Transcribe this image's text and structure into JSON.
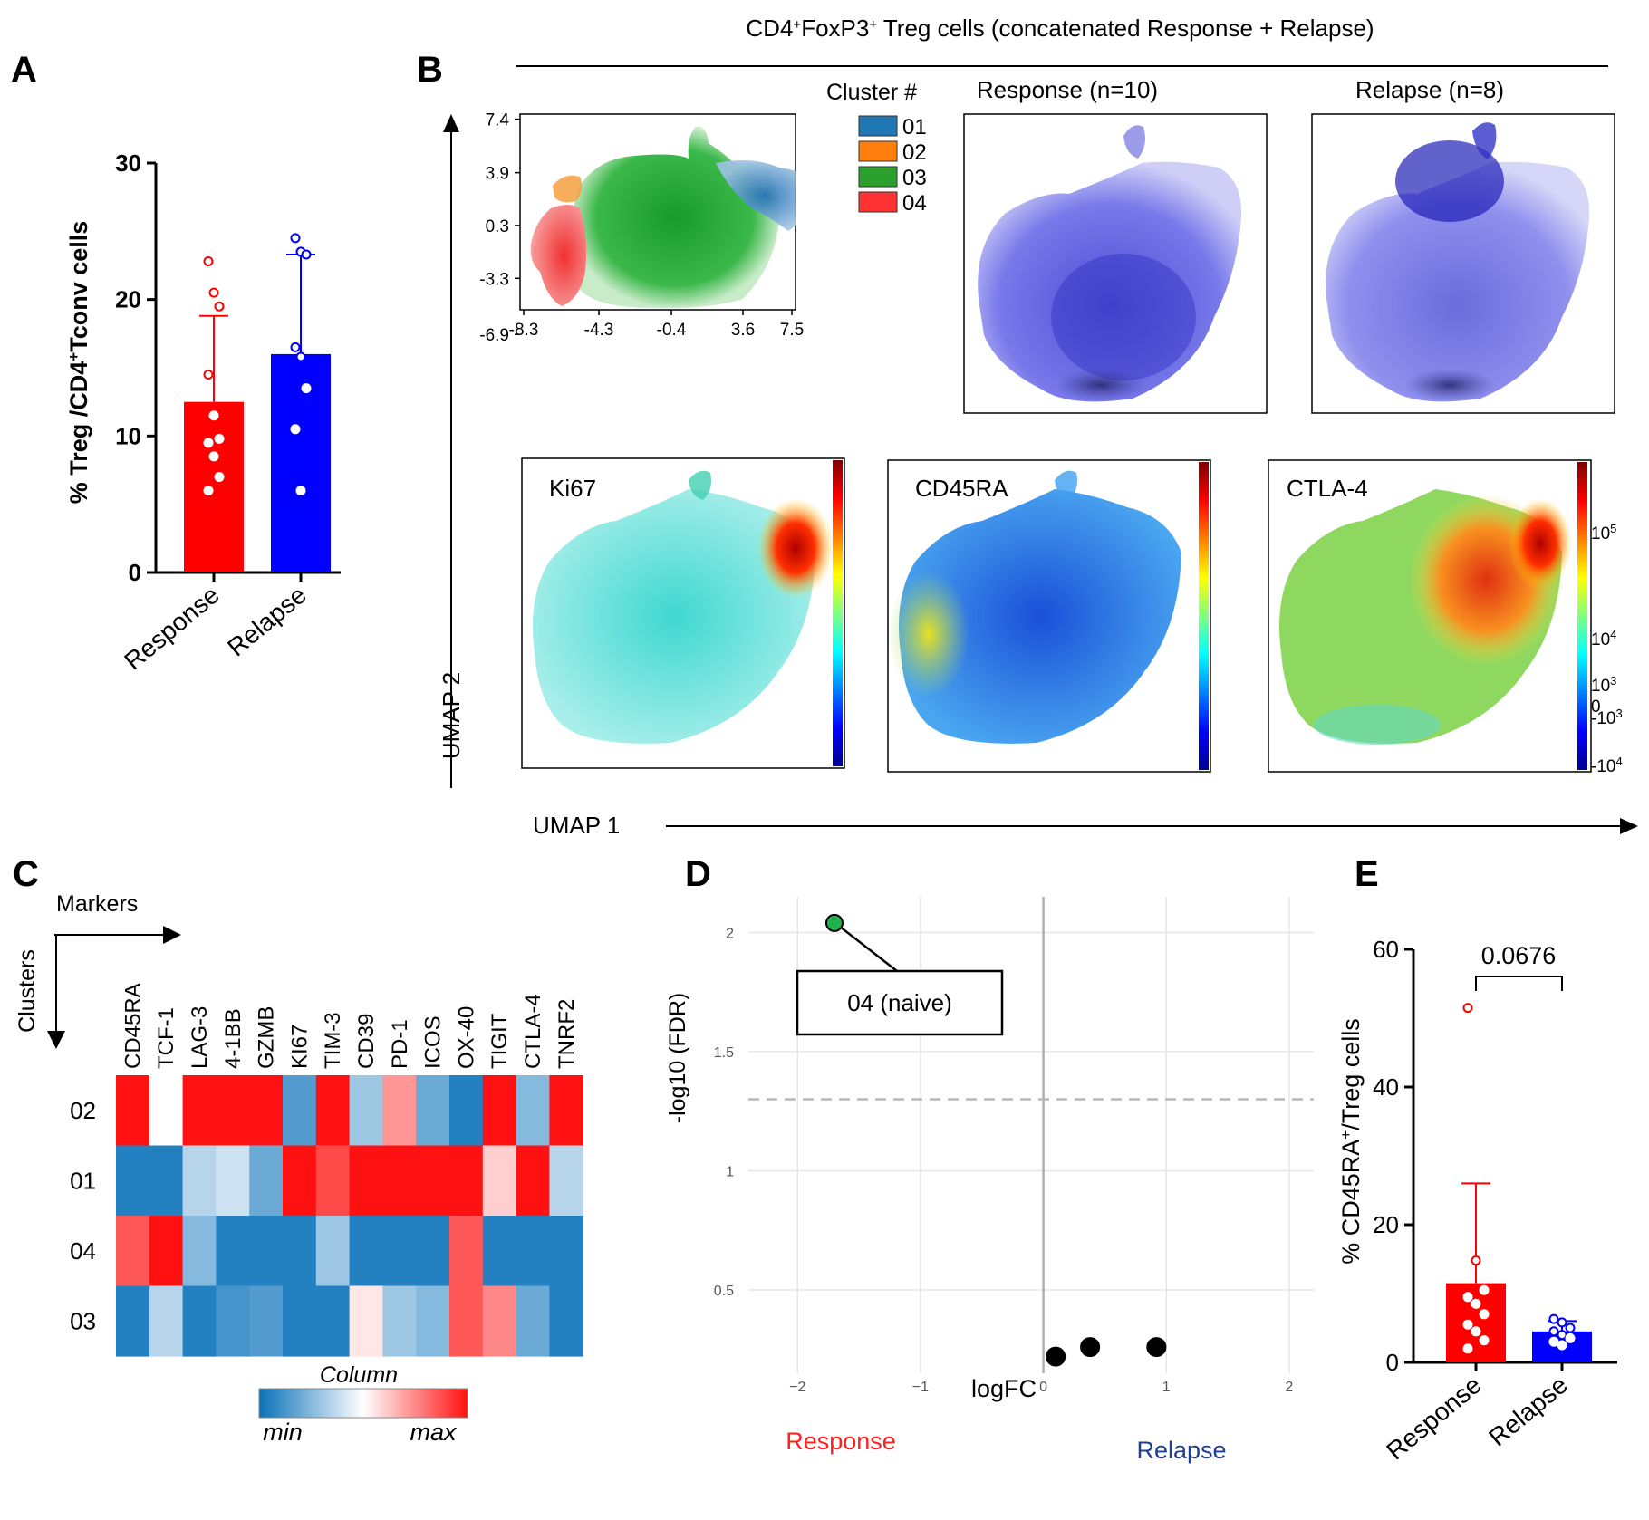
{
  "colors": {
    "red": "#ff0000",
    "blue": "#0000ff",
    "green": "#22b14c",
    "text_red": "#ff2020",
    "text_blue": "#1f3f8f"
  },
  "panel_labels": {
    "a": "A",
    "b": "B",
    "c": "C",
    "d": "D",
    "e": "E"
  },
  "chart_data": [
    {
      "id": "A",
      "type": "bar",
      "categories": [
        "Response",
        "Relapse"
      ],
      "values": [
        12.5,
        16.0
      ],
      "errors_upper": [
        18.8,
        23.3
      ],
      "points": [
        [
          22.8,
          20.5,
          19.5,
          14.5,
          11.5,
          9.8,
          9.5,
          8.5,
          7.0,
          6.0
        ],
        [
          24.5,
          23.5,
          23.3,
          16.5,
          15.8,
          13.5,
          10.5,
          6.0
        ]
      ],
      "series_colors": [
        "#ff0000",
        "#0000ff"
      ],
      "ylabel_parts": [
        "% Treg /CD4",
        "+",
        "Tconv cells"
      ],
      "ylim": [
        0,
        30
      ],
      "yticks": [
        0,
        10,
        20,
        30
      ]
    },
    {
      "id": "B",
      "type": "scatter",
      "title_parts": [
        "CD4",
        "+",
        "FoxP3",
        "+",
        " Treg cells  (concatenated Response  + Relapse)"
      ],
      "xlabel": "UMAP 1",
      "ylabel": "UMAP 2",
      "x_ticks": [
        "-8.3",
        "-4.3",
        "-0.4",
        "3.6",
        "7.5"
      ],
      "y_ticks": [
        "7.4",
        "3.9",
        "0.3",
        "-3.3",
        "-6.9"
      ],
      "legend_title": "Cluster #",
      "clusters": [
        {
          "label": "01",
          "color": "#1f77b4"
        },
        {
          "label": "02",
          "color": "#ff7f0e"
        },
        {
          "label": "03",
          "color": "#2ca02c"
        },
        {
          "label": "04",
          "color": "#ff3333"
        }
      ],
      "group_panels": [
        "Response  (n=10)",
        "Relapse  (n=8)"
      ],
      "marker_panels": [
        "Ki67",
        "CD45RA",
        "CTLA-4"
      ],
      "colorbar_ticks": [
        {
          "base": "10",
          "exp": "5"
        },
        {
          "base": "10",
          "exp": "4"
        },
        {
          "base": "10",
          "exp": "3"
        },
        {
          "base": "0",
          "exp": ""
        },
        {
          "base": "-10",
          "exp": "3"
        },
        {
          "base": "-10",
          "exp": "4"
        }
      ]
    },
    {
      "id": "C",
      "type": "heatmap",
      "columns_label": "Markers",
      "rows_label": "Clusters",
      "columns": [
        "CD45RA",
        "TCF-1",
        "LAG-3",
        "4-1BB",
        "GZMB",
        "KI67",
        "TIM-3",
        "CD39",
        "PD-1",
        "ICOS",
        "OX-40",
        "TIGIT",
        "CTLA-4",
        "TNRF2"
      ],
      "rows": [
        "02",
        "01",
        "04",
        "03"
      ],
      "values": [
        [
          1.0,
          null,
          1.0,
          1.0,
          1.0,
          0.15,
          1.0,
          0.3,
          0.72,
          0.2,
          0.05,
          1.0,
          0.25,
          1.0
        ],
        [
          0.05,
          0.05,
          0.35,
          0.4,
          0.2,
          1.0,
          0.88,
          1.0,
          1.0,
          1.0,
          1.0,
          0.6,
          1.0,
          0.35
        ],
        [
          0.85,
          1.0,
          0.25,
          0.05,
          0.05,
          0.05,
          0.3,
          0.05,
          0.05,
          0.05,
          0.85,
          0.05,
          0.05,
          0.05
        ],
        [
          0.05,
          0.35,
          0.05,
          0.12,
          0.15,
          0.05,
          0.05,
          0.55,
          0.3,
          0.25,
          0.85,
          0.75,
          0.2,
          0.05
        ]
      ],
      "legend_title": "Column",
      "legend_min": "min",
      "legend_max": "max"
    },
    {
      "id": "D",
      "type": "scatter",
      "xlabel": "logFC",
      "ylabel": "-log10 (FDR)",
      "xlim": [
        -2.4,
        2.2
      ],
      "ylim": [
        0.15,
        2.15
      ],
      "xticks": [
        -2,
        -1,
        0,
        1,
        2
      ],
      "yticks": [
        0.5,
        1,
        1.5,
        2
      ],
      "threshold": 1.3,
      "points": [
        {
          "x": -1.7,
          "y": 2.04,
          "highlight": true
        },
        {
          "x": 0.1,
          "y": 0.22,
          "highlight": false
        },
        {
          "x": 0.38,
          "y": 0.26,
          "highlight": false
        },
        {
          "x": 0.92,
          "y": 0.26,
          "highlight": false
        }
      ],
      "annotation": "04 (naive)",
      "left_label": "Response",
      "right_label": "Relapse"
    },
    {
      "id": "E",
      "type": "bar",
      "categories": [
        "Response",
        "Relapse"
      ],
      "values": [
        11.5,
        4.5
      ],
      "errors_upper": [
        26.0,
        6.0
      ],
      "points": [
        [
          51.5,
          14.8,
          10.5,
          9.5,
          8.5,
          7.0,
          5.5,
          4.5,
          3.2,
          2.0
        ],
        [
          6.3,
          5.8,
          5.0,
          4.5,
          4.0,
          3.5,
          3.0,
          2.5
        ]
      ],
      "series_colors": [
        "#ff0000",
        "#0000ff"
      ],
      "ylabel_parts": [
        "% CD45RA",
        "+",
        "/Treg cells"
      ],
      "ylim": [
        0,
        60
      ],
      "yticks": [
        0,
        20,
        40,
        60
      ],
      "pvalue": "0.0676"
    }
  ]
}
